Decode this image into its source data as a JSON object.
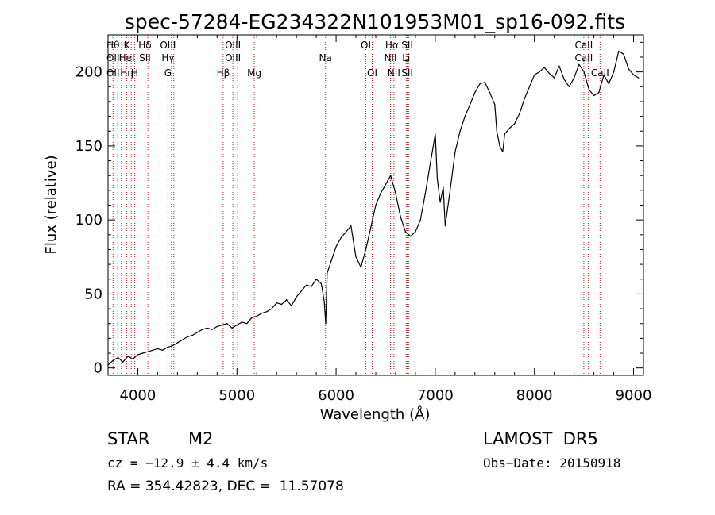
{
  "chart_data": {
    "type": "line",
    "title": "spec-57284-EG234322N101953M01_sp16-092.fits",
    "xlabel": "Wavelength (Å)",
    "ylabel": "Flux (relative)",
    "xlim": [
      3700,
      9100
    ],
    "ylim": [
      -5,
      225
    ],
    "xticks": [
      4000,
      5000,
      6000,
      7000,
      8000,
      9000
    ],
    "yticks": [
      0,
      50,
      100,
      150,
      200
    ],
    "grid": false,
    "series_color": "#000000",
    "line_color": "#b22222",
    "series": [
      {
        "x": [
          3700,
          3750,
          3800,
          3850,
          3900,
          3950,
          4000,
          4050,
          4100,
          4150,
          4200,
          4250,
          4300,
          4350,
          4400,
          4450,
          4500,
          4550,
          4600,
          4650,
          4700,
          4750,
          4800,
          4850,
          4900,
          4950,
          5000,
          5050,
          5100,
          5150,
          5200,
          5250,
          5300,
          5350,
          5400,
          5450,
          5500,
          5550,
          5600,
          5650,
          5700,
          5750,
          5800,
          5850,
          5880,
          5895,
          5910,
          5950,
          6000,
          6050,
          6100,
          6150,
          6200,
          6250,
          6300,
          6350,
          6400,
          6450,
          6500,
          6550,
          6600,
          6650,
          6700,
          6750,
          6800,
          6850,
          6900,
          6950,
          7000,
          7020,
          7050,
          7080,
          7100,
          7150,
          7200,
          7250,
          7300,
          7350,
          7400,
          7450,
          7500,
          7550,
          7600,
          7620,
          7650,
          7680,
          7700,
          7750,
          7800,
          7850,
          7900,
          7950,
          8000,
          8050,
          8100,
          8150,
          8200,
          8250,
          8300,
          8350,
          8400,
          8450,
          8500,
          8550,
          8600,
          8650,
          8700,
          8750,
          8800,
          8850,
          8900,
          8950,
          9000,
          9050
        ],
        "values": [
          2,
          5,
          7,
          4,
          8,
          6,
          9,
          10,
          11,
          12,
          13,
          12,
          14,
          15,
          17,
          19,
          21,
          22,
          24,
          26,
          27,
          26,
          28,
          29,
          30,
          27,
          29,
          31,
          30,
          34,
          35,
          37,
          38,
          40,
          44,
          43,
          46,
          42,
          48,
          52,
          56,
          55,
          60,
          57,
          45,
          30,
          64,
          72,
          82,
          88,
          92,
          96,
          75,
          68,
          80,
          95,
          110,
          118,
          124,
          130,
          118,
          102,
          92,
          89,
          92,
          100,
          118,
          138,
          158,
          128,
          112,
          122,
          96,
          120,
          146,
          160,
          170,
          178,
          186,
          192,
          193,
          186,
          178,
          160,
          150,
          146,
          158,
          162,
          165,
          172,
          182,
          190,
          198,
          200,
          203,
          199,
          196,
          204,
          195,
          190,
          196,
          205,
          200,
          188,
          184,
          186,
          198,
          192,
          200,
          214,
          212,
          202,
          198,
          196
        ]
      }
    ],
    "lines": [
      {
        "x": 3750,
        "labels": [
          "Hθ",
          "OII",
          "OII"
        ]
      },
      {
        "x": 3798,
        "labels": []
      },
      {
        "x": 3835,
        "labels": []
      },
      {
        "x": 3889,
        "labels": [
          "K",
          "HeI",
          "Hη"
        ]
      },
      {
        "x": 3934,
        "labels": []
      },
      {
        "x": 3969,
        "labels": [
          "",
          "",
          "H"
        ]
      },
      {
        "x": 4072,
        "labels": [
          "Hδ",
          "SII",
          ""
        ]
      },
      {
        "x": 4102,
        "labels": []
      },
      {
        "x": 4304,
        "labels": [
          "OIII",
          "Hγ",
          "G"
        ]
      },
      {
        "x": 4340,
        "labels": []
      },
      {
        "x": 4363,
        "labels": []
      },
      {
        "x": 4861,
        "labels": [
          "",
          "",
          "Hβ"
        ]
      },
      {
        "x": 4959,
        "labels": [
          "OIII",
          "OIII",
          ""
        ]
      },
      {
        "x": 5007,
        "labels": []
      },
      {
        "x": 5175,
        "labels": [
          "",
          "",
          "Mg"
        ]
      },
      {
        "x": 5893,
        "labels": [
          "",
          "Na",
          ""
        ]
      },
      {
        "x": 6300,
        "labels": [
          "OI",
          "",
          ""
        ]
      },
      {
        "x": 6364,
        "labels": [
          "",
          "",
          "OI"
        ]
      },
      {
        "x": 6548,
        "labels": [
          "",
          "NII",
          ""
        ]
      },
      {
        "x": 6563,
        "labels": [
          "Hα",
          "",
          ""
        ]
      },
      {
        "x": 6583,
        "labels": [
          "",
          "",
          "NII"
        ]
      },
      {
        "x": 6707,
        "labels": [
          "",
          "Li",
          ""
        ]
      },
      {
        "x": 6717,
        "labels": [
          "SII",
          "",
          "SII"
        ]
      },
      {
        "x": 6731,
        "labels": []
      },
      {
        "x": 8498,
        "labels": [
          "CaII",
          "CaII",
          ""
        ]
      },
      {
        "x": 8542,
        "labels": []
      },
      {
        "x": 8662,
        "labels": [
          "",
          "",
          "CaII"
        ]
      }
    ]
  },
  "info": {
    "object_class": "STAR",
    "subclass": "M2",
    "survey": "LAMOST  DR5",
    "cz": "cz = −12.9 ± 4.4 km/s",
    "obs_date": "Obs−Date: 20150918",
    "radec": "RA = 354.42823, DEC =  11.57078"
  }
}
